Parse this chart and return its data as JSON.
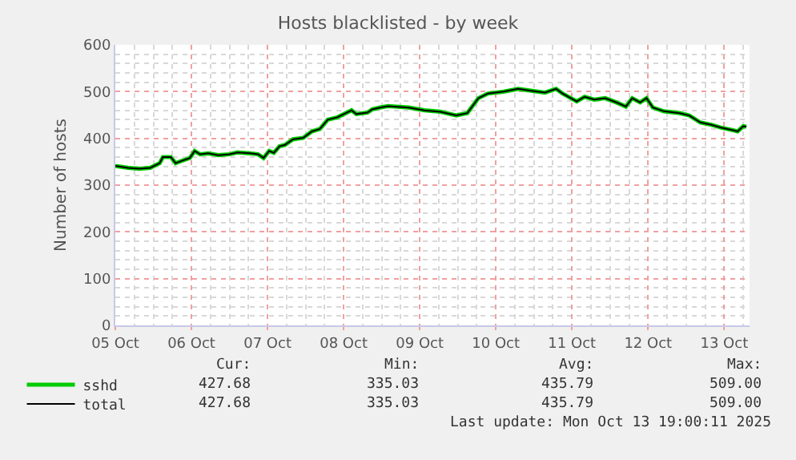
{
  "chart_data": {
    "type": "line",
    "title": "Hosts blacklisted - by week",
    "ylabel": "Number of hosts",
    "x": [
      "2025-10-05T00:00",
      "2025-10-05T04:00",
      "2025-10-05T07:30",
      "2025-10-05T11:00",
      "2025-10-05T14:00",
      "2025-10-05T15:00",
      "2025-10-05T17:30",
      "2025-10-05T19:00",
      "2025-10-05T21:00",
      "2025-10-05T23:30",
      "2025-10-06T01:00",
      "2025-10-06T02:45",
      "2025-10-06T05:15",
      "2025-10-06T08:30",
      "2025-10-06T12:00",
      "2025-10-06T14:30",
      "2025-10-06T18:30",
      "2025-10-06T21:00",
      "2025-10-06T22:45",
      "2025-10-07T00:30",
      "2025-10-07T02:00",
      "2025-10-07T03:45",
      "2025-10-07T05:30",
      "2025-10-07T08:00",
      "2025-10-07T11:15",
      "2025-10-07T14:00",
      "2025-10-07T16:30",
      "2025-10-07T19:00",
      "2025-10-07T22:00",
      "2025-10-08T02:30",
      "2025-10-08T04:00",
      "2025-10-08T07:30",
      "2025-10-08T09:00",
      "2025-10-08T11:30",
      "2025-10-08T14:00",
      "2025-10-08T20:30",
      "2025-10-09T01:30",
      "2025-10-09T06:30",
      "2025-10-09T11:30",
      "2025-10-09T15:00",
      "2025-10-09T18:30",
      "2025-10-09T21:30",
      "2025-10-10T02:30",
      "2025-10-10T07:00",
      "2025-10-10T11:00",
      "2025-10-10T15:30",
      "2025-10-10T19:00",
      "2025-10-10T21:00",
      "2025-10-11T01:30",
      "2025-10-11T04:00",
      "2025-10-11T07:00",
      "2025-10-11T10:30",
      "2025-10-11T14:00",
      "2025-10-11T17:00",
      "2025-10-11T19:00",
      "2025-10-11T21:30",
      "2025-10-11T23:30",
      "2025-10-12T01:30",
      "2025-10-12T05:00",
      "2025-10-12T10:00",
      "2025-10-12T13:00",
      "2025-10-12T16:30",
      "2025-10-12T20:00",
      "2025-10-12T23:00",
      "2025-10-13T02:30",
      "2025-10-13T04:15",
      "2025-10-13T06:00",
      "2025-10-13T07:00"
    ],
    "series": [
      {
        "name": "sshd",
        "color": "#00cc00",
        "values": [
          341,
          337,
          335,
          337,
          347,
          360,
          360,
          347,
          352,
          358,
          373,
          366,
          368,
          364,
          366,
          370,
          368,
          366,
          358,
          373,
          369,
          383,
          386,
          398,
          401,
          415,
          420,
          440,
          445,
          460,
          452,
          455,
          462,
          466,
          469,
          466,
          460,
          457,
          449,
          454,
          486,
          496,
          500,
          506,
          502,
          498,
          506,
          496,
          479,
          489,
          483,
          486,
          477,
          468,
          486,
          477,
          486,
          466,
          458,
          454,
          449,
          434,
          429,
          423,
          418,
          415,
          426,
          425
        ]
      },
      {
        "name": "total",
        "color": "#000000",
        "values": [
          341,
          337,
          335,
          337,
          347,
          360,
          360,
          347,
          352,
          358,
          373,
          366,
          368,
          364,
          366,
          370,
          368,
          366,
          358,
          373,
          369,
          383,
          386,
          398,
          401,
          415,
          420,
          440,
          445,
          460,
          452,
          455,
          462,
          466,
          469,
          466,
          460,
          457,
          449,
          454,
          486,
          496,
          500,
          506,
          502,
          498,
          506,
          496,
          479,
          489,
          483,
          486,
          477,
          468,
          486,
          477,
          486,
          466,
          458,
          454,
          449,
          434,
          429,
          423,
          418,
          415,
          426,
          425
        ]
      }
    ],
    "xlim": [
      "2025-10-05T00:00",
      "2025-10-13T08:00"
    ],
    "xticks": [
      {
        "value": "2025-10-05",
        "label": "05 Oct"
      },
      {
        "value": "2025-10-06",
        "label": "06 Oct"
      },
      {
        "value": "2025-10-07",
        "label": "07 Oct"
      },
      {
        "value": "2025-10-08",
        "label": "08 Oct"
      },
      {
        "value": "2025-10-09",
        "label": "09 Oct"
      },
      {
        "value": "2025-10-10",
        "label": "10 Oct"
      },
      {
        "value": "2025-10-11",
        "label": "11 Oct"
      },
      {
        "value": "2025-10-12",
        "label": "12 Oct"
      },
      {
        "value": "2025-10-13",
        "label": "13 Oct"
      }
    ],
    "ylim": [
      0,
      600
    ],
    "yticks": [
      0,
      100,
      200,
      300,
      400,
      500,
      600
    ],
    "grid": true,
    "legend": "bottom left",
    "marker": "none",
    "line_style": "solid",
    "annotations": [
      "Cur:",
      "Min:",
      "Avg:",
      "Max:",
      "427.68",
      "335.03",
      "435.79",
      "509.00",
      "427.68",
      "335.03",
      "435.79",
      "509.00",
      "Last update: Mon Oct 13 19:00:11 2025"
    ]
  }
}
